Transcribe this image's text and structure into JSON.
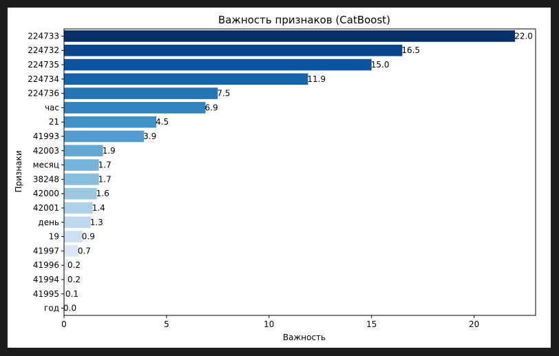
{
  "chart_data": {
    "type": "bar",
    "orientation": "horizontal",
    "title": "Важность признаков (CatBoost)",
    "xlabel": "Важность",
    "ylabel": "Признаки",
    "xlim": [
      0,
      23
    ],
    "xticks": [
      0,
      5,
      10,
      15,
      20
    ],
    "grid": false,
    "colormap": "Blues (dark to light)",
    "categories": [
      "224733",
      "224732",
      "224735",
      "224734",
      "224736",
      "час",
      "21",
      "41993",
      "42003",
      "месяц",
      "38248",
      "42000",
      "42001",
      "день",
      "19",
      "41997",
      "41996",
      "41994",
      "41995",
      "год"
    ],
    "values": [
      22.0,
      16.5,
      15.0,
      11.9,
      7.5,
      6.9,
      4.5,
      3.9,
      1.9,
      1.7,
      1.7,
      1.6,
      1.4,
      1.3,
      0.9,
      0.7,
      0.2,
      0.2,
      0.1,
      0.0
    ],
    "value_labels": [
      "22.0",
      "16.5",
      "15.0",
      "11.9",
      "7.5",
      "6.9",
      "4.5",
      "3.9",
      "1.9",
      "1.7",
      "1.7",
      "1.6",
      "1.4",
      "1.3",
      "0.9",
      "0.7",
      "0.2",
      "0.2",
      "0.1",
      "0.0"
    ],
    "colors": [
      "#08306b",
      "#08458a",
      "#0b559f",
      "#1764ab",
      "#2474b6",
      "#3383be",
      "#4191c6",
      "#519ccc",
      "#62a8d2",
      "#75b4d8",
      "#89bedc",
      "#9dc9e0",
      "#afd1e7",
      "#bfd8ed",
      "#cddff1",
      "#d9e7f5",
      "#e3eef8",
      "#edf4fc",
      "#f3f8fe",
      "#f7fbff"
    ]
  }
}
